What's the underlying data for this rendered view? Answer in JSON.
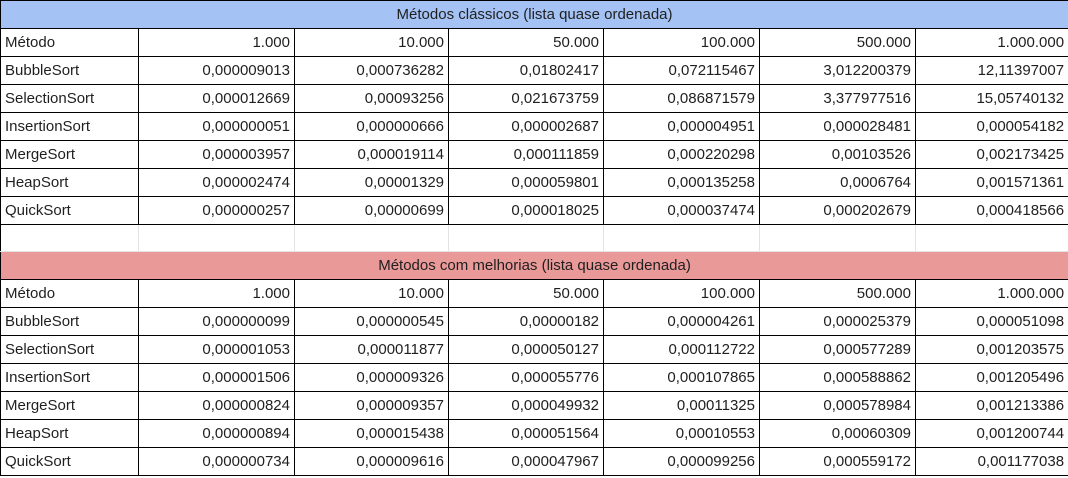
{
  "classic": {
    "title": "Métodos clássicos (lista quase ordenada)",
    "header": [
      "Método",
      "1.000",
      "10.000",
      "50.000",
      "100.000",
      "500.000",
      "1.000.000"
    ],
    "rows": [
      [
        "BubbleSort",
        "0,000009013",
        "0,000736282",
        "0,01802417",
        "0,072115467",
        "3,012200379",
        "12,11397007"
      ],
      [
        "SelectionSort",
        "0,000012669",
        "0,00093256",
        "0,021673759",
        "0,086871579",
        "3,377977516",
        "15,05740132"
      ],
      [
        "InsertionSort",
        "0,000000051",
        "0,000000666",
        "0,000002687",
        "0,000004951",
        "0,000028481",
        "0,000054182"
      ],
      [
        "MergeSort",
        "0,000003957",
        "0,000019114",
        "0,000111859",
        "0,000220298",
        "0,00103526",
        "0,002173425"
      ],
      [
        "HeapSort",
        "0,000002474",
        "0,00001329",
        "0,000059801",
        "0,000135258",
        "0,0006764",
        "0,001571361"
      ],
      [
        "QuickSort",
        "0,000000257",
        "0,00000699",
        "0,000018025",
        "0,000037474",
        "0,000202679",
        "0,000418566"
      ]
    ]
  },
  "improved": {
    "title": "Métodos com melhorias (lista quase ordenada)",
    "header": [
      "Método",
      "1.000",
      "10.000",
      "50.000",
      "100.000",
      "500.000",
      "1.000.000"
    ],
    "rows": [
      [
        "BubbleSort",
        "0,000000099",
        "0,000000545",
        "0,00000182",
        "0,000004261",
        "0,000025379",
        "0,000051098"
      ],
      [
        "SelectionSort",
        "0,000001053",
        "0,000011877",
        "0,000050127",
        "0,000112722",
        "0,000577289",
        "0,001203575"
      ],
      [
        "InsertionSort",
        "0,000001506",
        "0,000009326",
        "0,000055776",
        "0,000107865",
        "0,000588862",
        "0,001205496"
      ],
      [
        "MergeSort",
        "0,000000824",
        "0,000009357",
        "0,000049932",
        "0,00011325",
        "0,000578984",
        "0,001213386"
      ],
      [
        "HeapSort",
        "0,000000894",
        "0,000015438",
        "0,000051564",
        "0,00010553",
        "0,00060309",
        "0,001200744"
      ],
      [
        "QuickSort",
        "0,000000734",
        "0,000009616",
        "0,000047967",
        "0,000099256",
        "0,000559172",
        "0,001177038"
      ]
    ]
  },
  "colors": {
    "classic_title_bg": "#a4c2f4",
    "improved_title_bg": "#ea9999",
    "grid": "#000000"
  }
}
